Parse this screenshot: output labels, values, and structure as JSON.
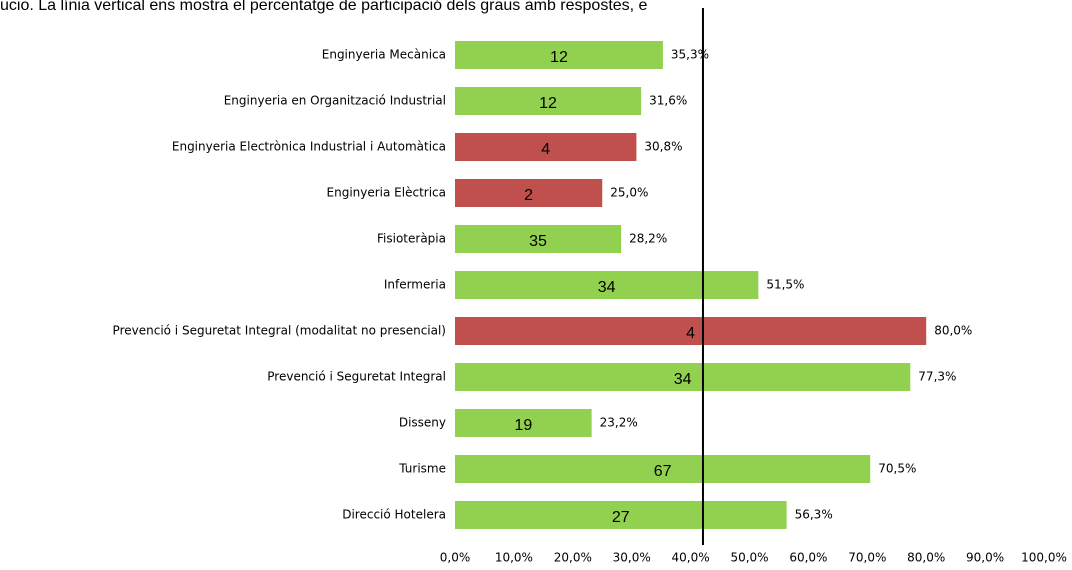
{
  "chart_data": {
    "type": "bar",
    "orientation": "horizontal",
    "title": "ucio. La línia vertical ens mostra el percentatge de participació dels graus amb respostes, e",
    "categories": [
      "Enginyeria Mecànica",
      "Enginyeria en Organització Industrial",
      "Enginyeria Electrònica Industrial i Automàtica",
      "Enginyeria Elèctrica",
      "Fisioteràpia",
      "Infermeria",
      "Prevenció i Seguretat Integral (modalitat no presencial)",
      "Prevenció i Seguretat Integral",
      "Disseny",
      "Turisme",
      "Direcció Hotelera"
    ],
    "values": [
      35.3,
      31.6,
      30.8,
      25.0,
      28.2,
      51.5,
      80.0,
      77.3,
      23.2,
      70.5,
      56.3
    ],
    "value_labels": [
      "35,3%",
      "31,6%",
      "30,8%",
      "25,0%",
      "28,2%",
      "51,5%",
      "80,0%",
      "77,3%",
      "23,2%",
      "70,5%",
      "56,3%"
    ],
    "counts": [
      12,
      12,
      4,
      2,
      35,
      34,
      4,
      34,
      19,
      67,
      27
    ],
    "colors": [
      "#92d050",
      "#92d050",
      "#c0504d",
      "#c0504d",
      "#92d050",
      "#92d050",
      "#c0504d",
      "#92d050",
      "#92d050",
      "#92d050",
      "#92d050"
    ],
    "xlim": [
      0,
      100
    ],
    "xticks": [
      {
        "value": 0,
        "label": "0,0%"
      },
      {
        "value": 10,
        "label": "10,0%"
      },
      {
        "value": 20,
        "label": "20,0%"
      },
      {
        "value": 30,
        "label": "30,0%"
      },
      {
        "value": 40,
        "label": "40,0%"
      },
      {
        "value": 50,
        "label": "50,0%"
      },
      {
        "value": 60,
        "label": "60,0%"
      },
      {
        "value": 70,
        "label": "70,0%"
      },
      {
        "value": 80,
        "label": "80,0%"
      },
      {
        "value": 90,
        "label": "90,0%"
      },
      {
        "value": 100,
        "label": "100,0%"
      }
    ],
    "reference_line": 42.1
  }
}
